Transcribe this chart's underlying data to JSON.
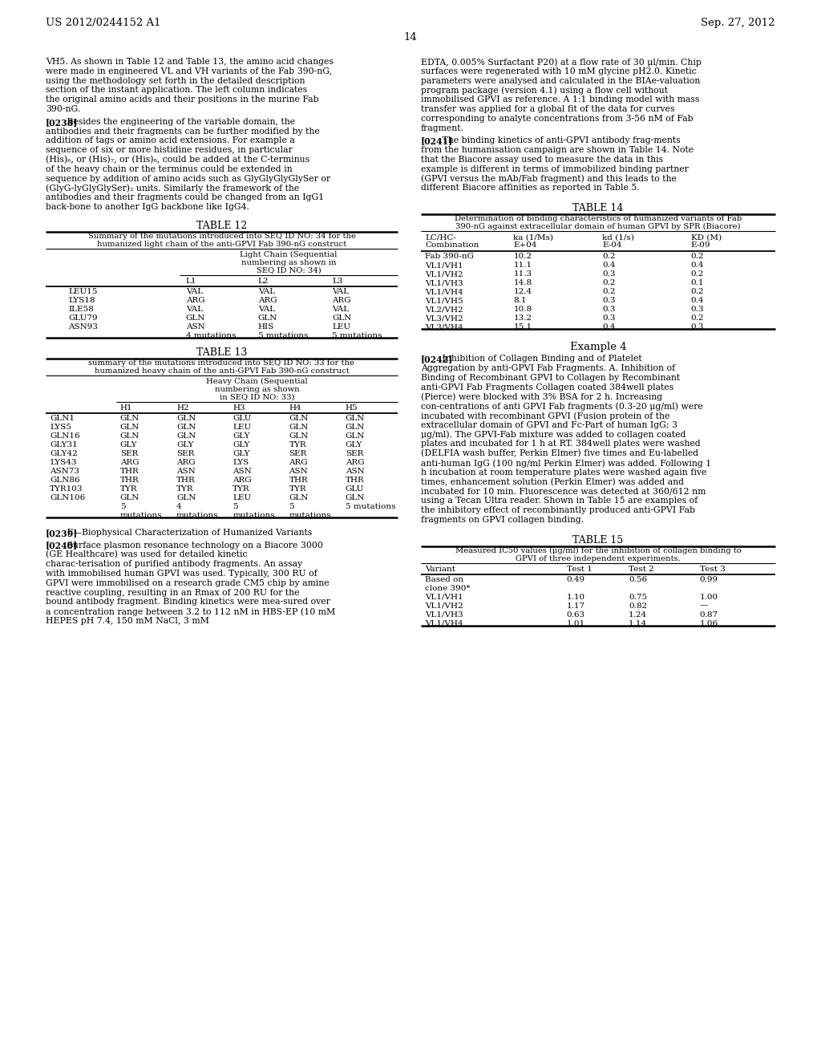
{
  "header_left": "US 2012/0244152 A1",
  "header_right": "Sep. 27, 2012",
  "page_number": "14",
  "background_color": "#ffffff",
  "left_col_para1": "VH5. As shown in Table 12 and Table 13, the amino acid changes were made in engineered VL and VH variants of the Fab 390-nG, using the methodology set forth in the detailed description section of the instant application. The left column indicates the original amino acids and their positions in the murine Fab 390-nG.",
  "left_col_para2_tag": "[0238]",
  "left_col_para2": "Besides the engineering of the variable domain, the antibodies and their fragments can be further modified by the addition of tags or amino acid extensions. For example a sequence of six or more histidine residues, in particular (His)₆, or (His)₇, or (His)₈, could be added at the C-terminus of the heavy chain or the terminus could be extended in sequence by addition of amino acids such as GlyGlyGlyGlySer or (GlyG-lyGlyGlySer)₂ units. Similarly the framework of the antibodies and their fragments could be changed from an IgG1 back-bone to another IgG backbone like IgG4.",
  "right_col_para1": "EDTA, 0.005% Surfactant P20) at a flow rate of 30 μl/min. Chip surfaces were regenerated with 10 mM glycine pH2.0. Kinetic parameters were analysed and calculated in the BIAe-valuation program package (version 4.1) using a flow cell without immobilised GPVI as reference. A 1:1 binding model with mass transfer was applied for a global fit of the data for curves corresponding to analyte concentrations from 3-56 nM of Fab fragment.",
  "right_col_para2_tag": "[0241]",
  "right_col_para2": "The binding kinetics of anti-GPVI antibody frag-ments from the humanisation campaign are shown in Table 14. Note that the Biacore assay used to measure the data in this example is different in terms of immobilized binding partner (GPVI versus the mAb/Fab fragment) and this leads to the different Biacore affinities as reported in Table 5.",
  "left_col_para3_tag": "[0239]",
  "left_col_para3": "F—Biophysical Characterization of Humanized Variants",
  "left_col_para4_tag": "[0240]",
  "left_col_para4": "Surface plasmon resonance technology on a Biacore 3000 (GE Healthcare) was used for detailed kinetic charac-terisation of purified antibody fragments. An assay with immobilised human GPVI was used. Typically, 300 RU of GPVI were immobilised on a research grade CM5 chip by amine reactive coupling, resulting in an Rmax of 200 RU for the bound antibody fragment. Binding kinetics were mea-sured over a concentration range between 3.2 to 112 nM in HBS-EP (10 mM HEPES pH 7.4, 150 mM NaCl, 3 mM",
  "right_col_example": "Example 4",
  "right_col_para3_tag": "[0242]",
  "right_col_para3": "Inhibition of Collagen Binding and of Platelet Aggregation by anti-GPVI Fab Fragments. A. Inhibition of Binding of Recombinant GPVI to Collagen by Recombinant anti-GPVI Fab Fragments Collagen coated 384well plates (Pierce) were blocked with 3% BSA for 2 h. Increasing con-centrations of anti GPVI Fab fragments (0.3-20 μg/ml) were incubated with recombinant GPVI (Fusion protein of the extracellular domain of GPVI and Fc-Part of human IgG; 3 μg/ml). The GPVI-Fab mixture was added to collagen coated plates and incubated for 1 h at RT. 384well plates were washed (DELFIA wash buffer, Perkin Elmer) five times and Eu-labelled anti-human IgG (100 ng/ml Perkin Elmer) was added. Following 1 h incubation at room temperature plates were washed again five times, enhancement solution (Perkin Elmer) was added and incubated for 10 min. Fluorescence was detected at 360/612 nm using a Tecan Ultra reader. Shown in Table 15 are examples of the inhibitory effect of recombinantly produced anti-GPVI Fab fragments on GPVI collagen binding.",
  "table12_title": "TABLE 12",
  "table12_subtitle1": "Summary of the mutations introduced into SEQ ID NO: 34 for the",
  "table12_subtitle2": "humanized light chain of the anti-GPVI Fab 390-nG construct",
  "table12_col_header1": "Light Chain (Sequential",
  "table12_col_header2": "numbering as shown in",
  "table12_col_header3": "SEQ ID NO: 34)",
  "table12_cols": [
    "",
    "L1",
    "L2",
    "L3"
  ],
  "table12_rows": [
    [
      "LEU15",
      "VAL",
      "VAL",
      "VAL"
    ],
    [
      "LYS18",
      "ARG",
      "ARG",
      "ARG"
    ],
    [
      "ILE58",
      "VAL",
      "VAL",
      "VAL"
    ],
    [
      "GLU79",
      "GLN",
      "GLN",
      "GLN"
    ],
    [
      "ASN93",
      "ASN",
      "HIS",
      "LEU"
    ],
    [
      "",
      "4 mutations",
      "5 mutations",
      "5 mutations"
    ]
  ],
  "table13_title": "TABLE 13",
  "table13_subtitle1": "summary of the mutations introduced into SEQ ID NO: 33 for the",
  "table13_subtitle2": "humanized heavy chain of the anti-GPVI Fab 390-nG construct",
  "table13_col_header1": "Heavy Chain (Sequential",
  "table13_col_header2": "numbering as shown",
  "table13_col_header3": "in SEQ ID NO: 33)",
  "table13_cols": [
    "",
    "H1",
    "H2",
    "H3",
    "H4",
    "H5"
  ],
  "table13_rows": [
    [
      "GLN1",
      "GLN",
      "GLN",
      "GLU",
      "GLN",
      "GLN"
    ],
    [
      "LYS5",
      "GLN",
      "GLN",
      "LEU",
      "GLN",
      "GLN"
    ],
    [
      "GLN16",
      "GLN",
      "GLN",
      "GLY",
      "GLN",
      "GLN"
    ],
    [
      "GLY31",
      "GLY",
      "GLY",
      "GLY",
      "TYR",
      "GLY"
    ],
    [
      "GLY42",
      "SER",
      "SER",
      "GLY",
      "SER",
      "SER"
    ],
    [
      "LYS43",
      "ARG",
      "ARG",
      "LYS",
      "ARG",
      "ARG"
    ],
    [
      "ASN73",
      "THR",
      "ASN",
      "ASN",
      "ASN",
      "ASN"
    ],
    [
      "GLN86",
      "THR",
      "THR",
      "ARG",
      "THR",
      "THR"
    ],
    [
      "TYR103",
      "TYR",
      "TYR",
      "TYR",
      "TYR",
      "GLU"
    ],
    [
      "GLN106",
      "GLN",
      "GLN",
      "LEU",
      "GLN",
      "GLN"
    ],
    [
      "",
      "5",
      "4",
      "5",
      "5",
      "5 mutations"
    ],
    [
      "",
      "mutations",
      "mutations",
      "mutations",
      "mutations",
      ""
    ]
  ],
  "table14_title": "TABLE 14",
  "table14_subtitle1": "Determination of binding characteristics of humanized variants of Fab",
  "table14_subtitle2": "390-nG against extracellular domain of human GPVI by SPR (Biacore)",
  "table14_cols": [
    "LC/HC-\nCombination",
    "ka (1/Ms)\nE+04",
    "kd (1/s)\nE-04",
    "KD (M)\nE-09"
  ],
  "table14_rows": [
    [
      "Fab 390-nG",
      "10.2",
      "0.2",
      "0.2"
    ],
    [
      "VL1/VH1",
      "11.1",
      "0.4",
      "0.4"
    ],
    [
      "VL1/VH2",
      "11.3",
      "0.3",
      "0.2"
    ],
    [
      "VL1/VH3",
      "14.8",
      "0.2",
      "0.1"
    ],
    [
      "VL1/VH4",
      "12.4",
      "0.2",
      "0.2"
    ],
    [
      "VL1/VH5",
      "8.1",
      "0.3",
      "0.4"
    ],
    [
      "VL2/VH2",
      "10.8",
      "0.3",
      "0.3"
    ],
    [
      "VL3/VH2",
      "13.2",
      "0.3",
      "0.2"
    ],
    [
      "VL3/VH4",
      "15.1",
      "0.4",
      "0.3"
    ]
  ],
  "table15_title": "TABLE 15",
  "table15_subtitle1": "Measured IC50 values (μg/ml) for the inhibition of collagen binding to",
  "table15_subtitle2": "GPVI of three independent experiments.",
  "table15_cols": [
    "Variant",
    "Test 1",
    "Test 2",
    "Test 3"
  ],
  "table15_rows": [
    [
      "Based on",
      "0.49",
      "0.56",
      "0.99"
    ],
    [
      "clone 390*",
      "",
      "",
      ""
    ],
    [
      "VL1/VH1",
      "1.10",
      "0.75",
      "1.00"
    ],
    [
      "VL1/VH2",
      "1.17",
      "0.82",
      "—"
    ],
    [
      "VL1/VH3",
      "0.63",
      "1.24",
      "0.87"
    ],
    [
      "VL1/VH4",
      "1.01",
      "1.14",
      "1.06"
    ]
  ]
}
